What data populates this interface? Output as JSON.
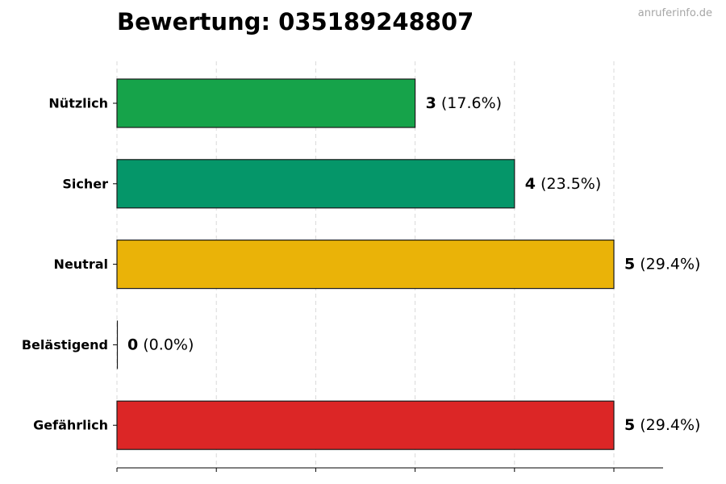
{
  "title": "Bewertung: 035189248807",
  "watermark": "anruferinfo.de",
  "chart_data": {
    "type": "bar",
    "orientation": "horizontal",
    "categories": [
      "Nützlich",
      "Sicher",
      "Neutral",
      "Belästigend",
      "Gefährlich"
    ],
    "values": [
      3,
      4,
      5,
      0,
      5
    ],
    "percent_labels": [
      "(17.6%)",
      "(23.5%)",
      "(29.4%)",
      "(0.0%)",
      "(29.4%)"
    ],
    "colors": [
      "#16a34a",
      "#059669",
      "#eab308",
      "#ea580c",
      "#dc2626"
    ],
    "xlim": [
      0,
      5.5
    ],
    "grid": true,
    "title": "Bewertung: 035189248807"
  }
}
